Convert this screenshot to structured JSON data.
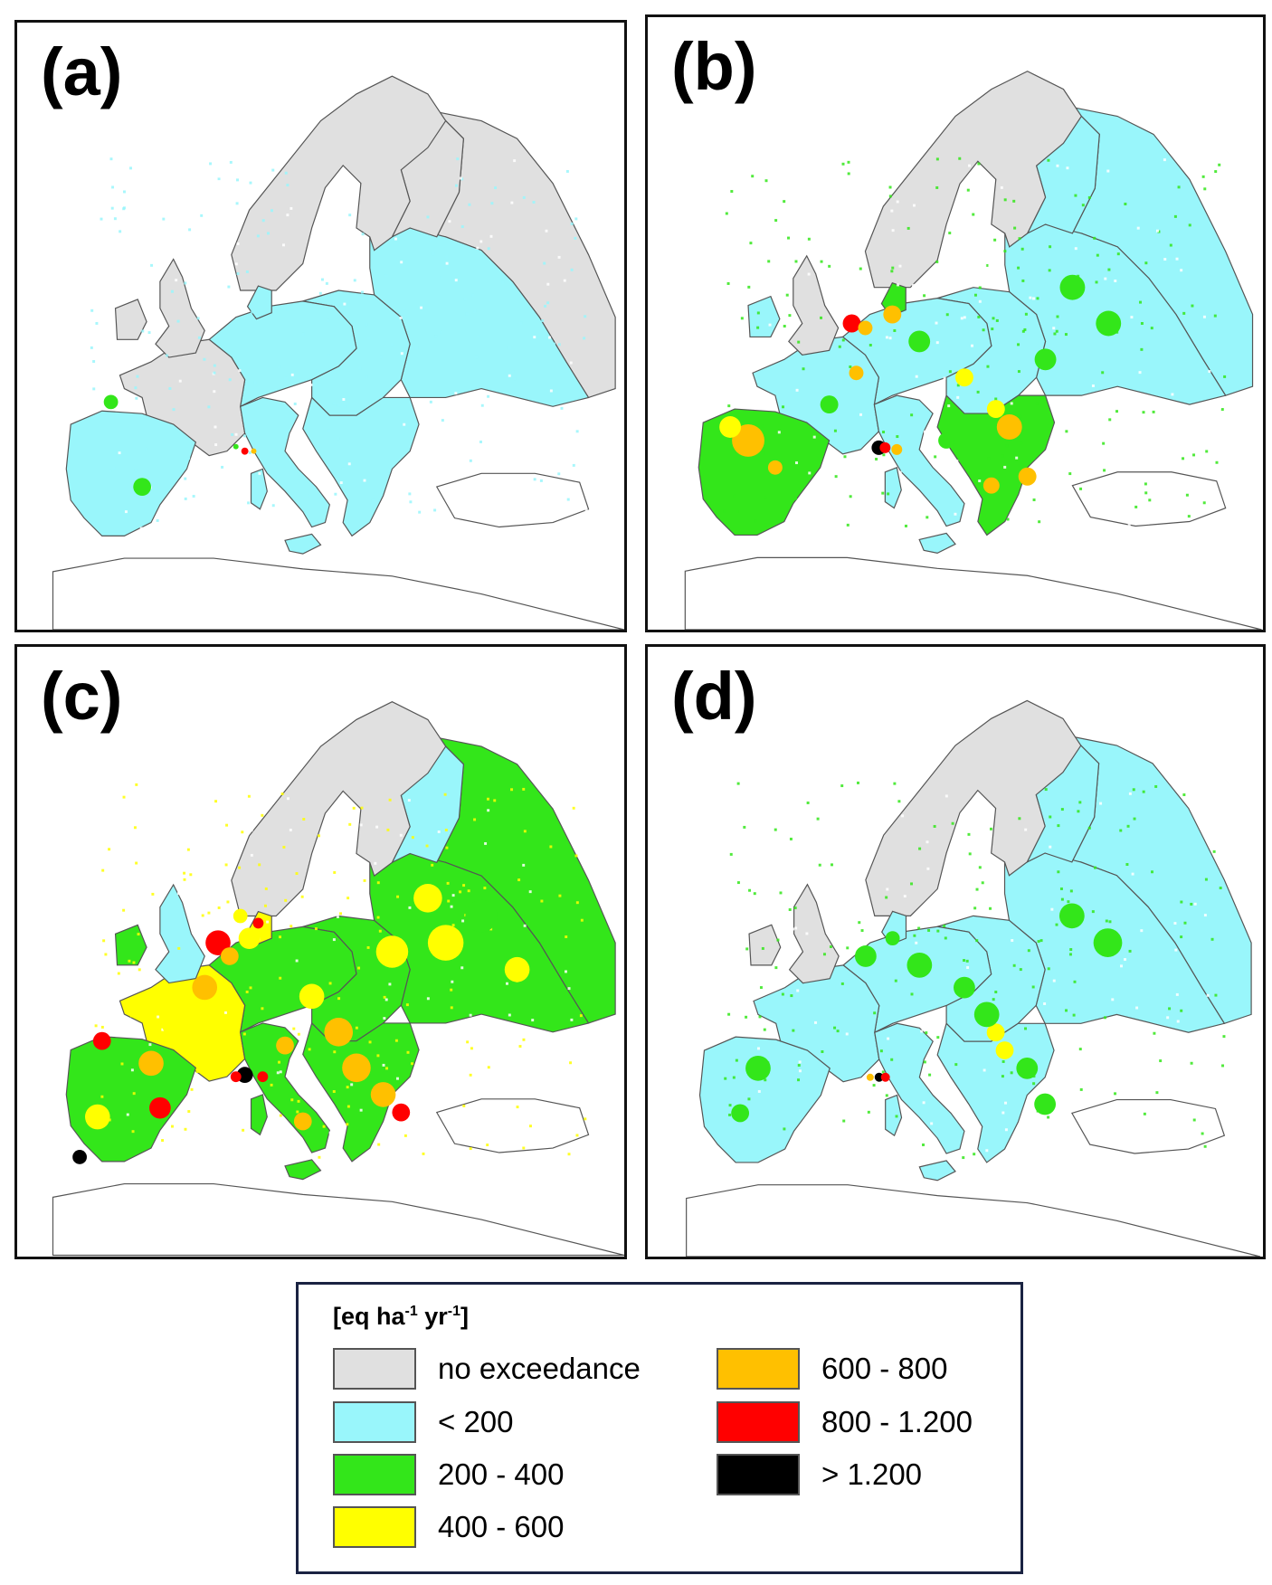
{
  "panels": [
    {
      "id": "a",
      "label": "(a)"
    },
    {
      "id": "b",
      "label": "(b)"
    },
    {
      "id": "c",
      "label": "(c)"
    },
    {
      "id": "d",
      "label": "(d)"
    }
  ],
  "legend": {
    "unit": "[eq ha",
    "unit_exp1": "-1",
    "unit_mid": " yr",
    "unit_exp2": "-1",
    "unit_end": "]",
    "classes": [
      {
        "label": "no exceedance",
        "color": "#e0e0e0"
      },
      {
        "label": "< 200",
        "color": "#99f6fb"
      },
      {
        "label": "200 - 400",
        "color": "#33e61a"
      },
      {
        "label": "400 - 600",
        "color": "#ffff00"
      },
      {
        "label": "600 - 800",
        "color": "#ffc000"
      },
      {
        "label": "800 - 1.200",
        "color": "#ff0000"
      },
      {
        "label": "> 1.200",
        "color": "#000000"
      }
    ]
  }
}
